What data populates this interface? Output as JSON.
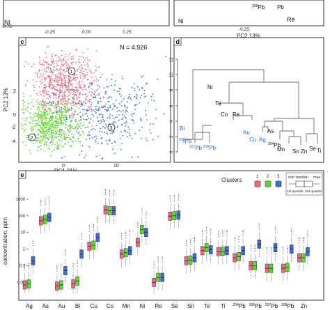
{
  "top_left": {
    "tick_labels_x": [
      "-0.25",
      "0.00",
      "0.25"
    ],
    "tick_label_y": "-0.75",
    "labels": [
      "Ni"
    ]
  },
  "top_right": {
    "xlabel": "PC2 13%",
    "tick_label_x": "-0.25",
    "labels": [
      "208Pb",
      "Pb",
      "Re",
      "Ni"
    ]
  },
  "panel_c": {
    "letter": "c",
    "n_label": "N = 4,926",
    "xlabel": "PC1 31%",
    "ylabel": "PC2 13%",
    "x_ticks": [
      "0",
      "10"
    ],
    "y_ticks": [
      "2",
      "0",
      "-2",
      "-4"
    ],
    "cluster_markers": [
      "1",
      "2",
      "3"
    ],
    "colors": {
      "1": "#f06b80",
      "2": "#5ddc2a",
      "3": "#3a6fd8"
    }
  },
  "panel_d": {
    "letter": "d",
    "y_ticks": [
      "0",
      "2",
      "4",
      "6",
      "8",
      "10",
      "12"
    ],
    "leaves_black": [
      "Ni",
      "Te",
      "Co",
      "Re",
      "As",
      "Mn",
      "Sn",
      "Zn",
      "Se",
      "Ti"
    ],
    "leaves_blue": [
      "Bi",
      "Au",
      "Cu",
      "Ag"
    ],
    "pb_leaves": [
      {
        "sup": "206",
        "base": "Pb"
      },
      {
        "sup": "207",
        "base": "Pb"
      },
      {
        "sup": "208",
        "base": "Pb"
      },
      {
        "sup": "204",
        "base": "Pb"
      }
    ]
  },
  "panel_e": {
    "letter": "e",
    "legend_title": "Clusters",
    "cluster_ids": [
      "1",
      "2",
      "3"
    ],
    "key_labels": {
      "min": "min",
      "median": "median",
      "max": "max",
      "q1": "1st quartile",
      "q3": "3rd quartile"
    }
  },
  "chart_data": {
    "type": "boxplot",
    "ylabel": "concentration, ppm",
    "yscale": "log",
    "ylim": [
      0.002,
      10000
    ],
    "y_ticks": [
      "1000",
      "100",
      "10",
      "1",
      "0.1",
      "0.01"
    ],
    "categories": [
      {
        "label": "Ag"
      },
      {
        "label": "As"
      },
      {
        "label": "Au"
      },
      {
        "label": "Bi"
      },
      {
        "label": "Cu"
      },
      {
        "label": "Co"
      },
      {
        "label": "Mn"
      },
      {
        "label": "Ni"
      },
      {
        "label": "Re"
      },
      {
        "label": "Se"
      },
      {
        "label": "Sn"
      },
      {
        "label": "Te"
      },
      {
        "label": "Ti"
      },
      {
        "label": "Pb",
        "sup": "204"
      },
      {
        "label": "Pb",
        "sup": "206"
      },
      {
        "label": "Pb",
        "sup": "207"
      },
      {
        "label": "Pb",
        "sup": "208"
      },
      {
        "label": "Zn"
      }
    ],
    "series": [
      {
        "name": "1",
        "color": "#f06b80",
        "medians": [
          0.007,
          50,
          0.006,
          0.008,
          1.5,
          230,
          0.5,
          2.5,
          0.01,
          95,
          0.2,
          0.8,
          0.7,
          0.3,
          0.1,
          0.07,
          0.07,
          0.3
        ]
      },
      {
        "name": "2",
        "color": "#5ddc2a",
        "medians": [
          0.008,
          60,
          0.007,
          0.012,
          1.7,
          200,
          0.6,
          15,
          0.02,
          100,
          0.22,
          1.2,
          0.75,
          0.35,
          0.1,
          0.07,
          0.08,
          0.3
        ]
      },
      {
        "name": "3",
        "color": "#3a6fd8",
        "medians": [
          0.2,
          80,
          0.05,
          0.5,
          5,
          200,
          0.8,
          10,
          0.02,
          110,
          0.3,
          0.9,
          0.8,
          0.8,
          2,
          1.2,
          1,
          0.7
        ]
      }
    ]
  }
}
